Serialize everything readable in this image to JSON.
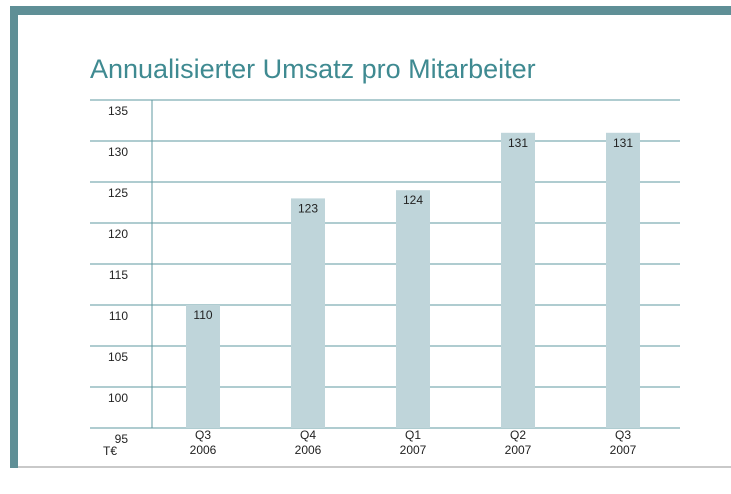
{
  "chart_data": {
    "type": "bar",
    "title": "Annualisierter Umsatz pro Mitarbeiter",
    "y_unit": "T€",
    "categories": [
      "Q3\n2006",
      "Q4\n2006",
      "Q1\n2007",
      "Q2\n2007",
      "Q3\n2007"
    ],
    "values": [
      110,
      123,
      124,
      131,
      131
    ],
    "color": "#bfd5da",
    "ylim": [
      95,
      135
    ],
    "yticks": [
      95,
      100,
      105,
      110,
      115,
      120,
      125,
      130,
      135
    ],
    "grid": true
  }
}
